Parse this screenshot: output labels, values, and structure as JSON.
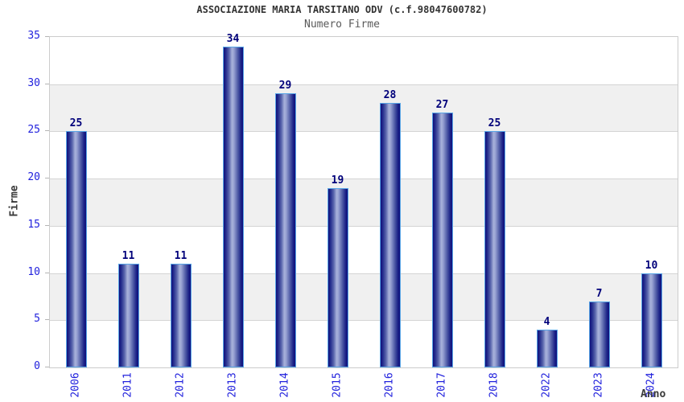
{
  "chart_data": {
    "type": "bar",
    "title": "ASSOCIAZIONE MARIA TARSITANO ODV (c.f.98047600782)",
    "subtitle": "Numero Firme",
    "xlabel": "Anno",
    "ylabel": "Firme",
    "categories": [
      "2006",
      "2011",
      "2012",
      "2013",
      "2014",
      "2015",
      "2016",
      "2017",
      "2018",
      "2022",
      "2023",
      "2024"
    ],
    "values": [
      25,
      11,
      11,
      34,
      29,
      19,
      28,
      27,
      25,
      4,
      7,
      10
    ],
    "ylim": [
      0,
      35
    ],
    "yticks": [
      0,
      5,
      10,
      15,
      20,
      25,
      30,
      35
    ],
    "grid": "horizontal-bands",
    "legend": "none",
    "colors": {
      "bar_edge": "#0f0f7c",
      "bar_highlight": "#a7b1da",
      "bar_border": "#58a5e6",
      "axis_tick_label": "#2222dd",
      "value_label": "#00007a",
      "band_fill": "#f0f0f0",
      "gridline": "#d4d4d4",
      "plot_border": "#cccccc",
      "title_color": "#333333",
      "subtitle_color": "#5a5a5a"
    }
  }
}
